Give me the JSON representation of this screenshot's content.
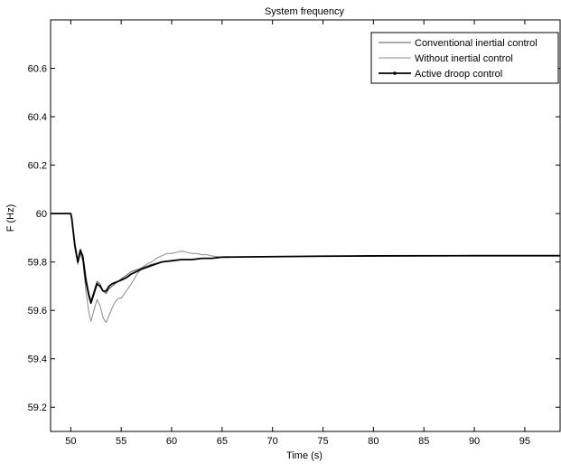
{
  "chart_data": {
    "type": "line",
    "title": "System frequency",
    "xlabel": "Time (s)",
    "ylabel": "F (Hz)",
    "xlim": [
      48,
      98.5
    ],
    "ylim": [
      59.1,
      60.8
    ],
    "xticks": [
      50,
      55,
      60,
      65,
      70,
      75,
      80,
      85,
      90,
      95
    ],
    "yticks": [
      59.2,
      59.4,
      59.6,
      59.8,
      60,
      60.2,
      60.4,
      60.6
    ],
    "ytick_labels": [
      "59.2",
      "59.4",
      "59.6",
      "59.8",
      "60",
      "60.2",
      "60.4",
      "60.6"
    ],
    "grid": false,
    "legend_position": "top-right",
    "series": [
      {
        "name": "Conventional inertial control",
        "color": "#555555",
        "style": "thin",
        "x": [
          48,
          50,
          50.1,
          50.4,
          50.7,
          50.95,
          51.2,
          51.5,
          51.8,
          52.0,
          52.3,
          52.6,
          52.9,
          53.2,
          53.5,
          53.8,
          54.1,
          54.4,
          54.7,
          55.0,
          55.5,
          56.0,
          57.0,
          58.0,
          59.0,
          60.0,
          61.0,
          62.0,
          63.0,
          64.0,
          65.0,
          70.0,
          75.0,
          80.0,
          90.0,
          98.5
        ],
        "y": [
          60.0,
          60.0,
          59.98,
          59.88,
          59.8,
          59.845,
          59.83,
          59.74,
          59.67,
          59.64,
          59.68,
          59.72,
          59.71,
          59.68,
          59.67,
          59.69,
          59.7,
          59.71,
          59.72,
          59.73,
          59.745,
          59.76,
          59.775,
          59.79,
          59.8,
          59.805,
          59.81,
          59.81,
          59.815,
          59.815,
          59.82,
          59.822,
          59.824,
          59.825,
          59.826,
          59.826
        ]
      },
      {
        "name": "Without inertial control",
        "color": "#8a8a8a",
        "style": "dotted",
        "x": [
          48,
          50,
          50.1,
          50.4,
          50.7,
          50.95,
          51.2,
          51.5,
          51.8,
          52.0,
          52.3,
          52.6,
          52.9,
          53.2,
          53.5,
          53.8,
          54.1,
          54.4,
          54.7,
          55.0,
          55.5,
          56.0,
          56.5,
          57.0,
          57.5,
          58.0,
          58.5,
          59.0,
          59.5,
          60.0,
          60.5,
          61.0,
          61.5,
          62.0,
          62.5,
          63.0,
          63.5,
          64.0,
          65.0,
          70.0,
          75.0,
          80.0,
          90.0,
          98.5
        ],
        "y": [
          60.0,
          60.0,
          59.97,
          59.86,
          59.79,
          59.835,
          59.8,
          59.68,
          59.59,
          59.555,
          59.6,
          59.645,
          59.62,
          59.57,
          59.55,
          59.58,
          59.61,
          59.635,
          59.65,
          59.65,
          59.68,
          59.71,
          59.745,
          59.775,
          59.79,
          59.8,
          59.815,
          59.825,
          59.835,
          59.835,
          59.84,
          59.845,
          59.84,
          59.835,
          59.835,
          59.83,
          59.83,
          59.825,
          59.82,
          59.822,
          59.824,
          59.825,
          59.826,
          59.826
        ]
      },
      {
        "name": "Active droop control",
        "color": "#000000",
        "style": "thick",
        "x": [
          48,
          50,
          50.1,
          50.4,
          50.7,
          50.95,
          51.2,
          51.5,
          51.8,
          52.0,
          52.3,
          52.6,
          52.9,
          53.2,
          53.5,
          53.8,
          54.1,
          54.4,
          54.7,
          55.0,
          55.5,
          56.0,
          57.0,
          58.0,
          59.0,
          60.0,
          61.0,
          62.0,
          63.0,
          64.0,
          65.0,
          70.0,
          75.0,
          80.0,
          90.0,
          98.5
        ],
        "y": [
          60.0,
          60.0,
          59.98,
          59.87,
          59.8,
          59.85,
          59.82,
          59.72,
          59.66,
          59.63,
          59.67,
          59.71,
          59.7,
          59.68,
          59.68,
          59.7,
          59.71,
          59.715,
          59.72,
          59.725,
          59.735,
          59.75,
          59.77,
          59.785,
          59.8,
          59.805,
          59.81,
          59.81,
          59.815,
          59.815,
          59.82,
          59.822,
          59.824,
          59.825,
          59.826,
          59.826
        ]
      }
    ]
  }
}
